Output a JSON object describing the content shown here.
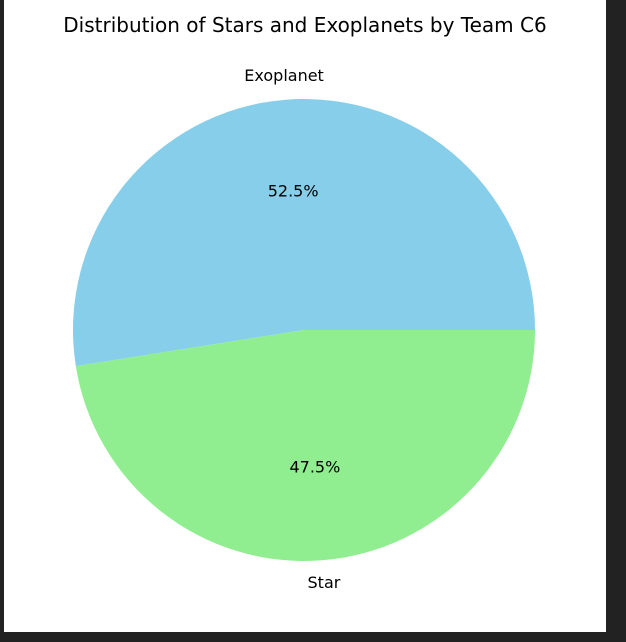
{
  "chart_data": {
    "type": "pie",
    "title": "Distribution of Stars and Exoplanets  by Team C6",
    "categories": [
      "Exoplanet",
      "Star"
    ],
    "values": [
      52.5,
      47.5
    ],
    "percent_labels": [
      "52.5%",
      "47.5%"
    ],
    "colors": [
      "#87ceeb",
      "#90ee90"
    ],
    "start_angle_deg": 0,
    "direction": "counterclockwise",
    "legend": "none"
  }
}
